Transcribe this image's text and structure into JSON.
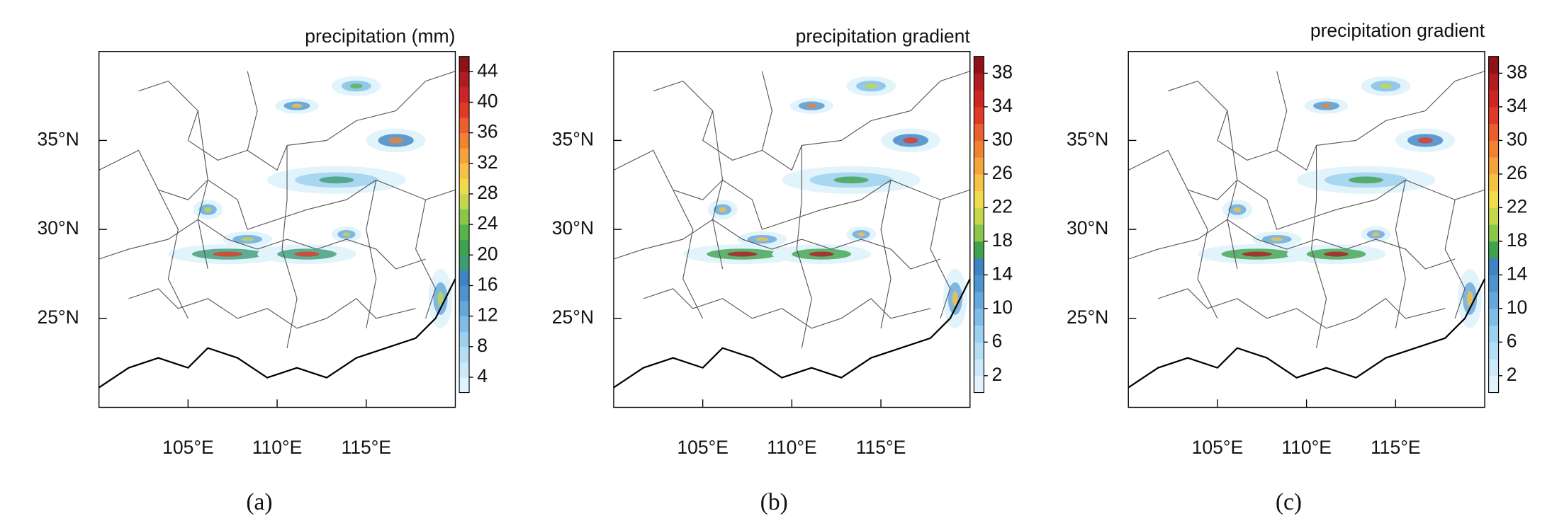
{
  "panels": [
    {
      "title": "precipitation (mm)",
      "caption": "(a)",
      "lonlim": [
        100,
        120
      ],
      "latlim": [
        20,
        40
      ],
      "lon_ticks": [
        {
          "value": 105,
          "label": "105°E"
        },
        {
          "value": 110,
          "label": "110°E"
        },
        {
          "value": 115,
          "label": "115°E"
        }
      ],
      "lat_ticks": [
        {
          "value": 35,
          "label": "35°N"
        },
        {
          "value": 30,
          "label": "30°N"
        },
        {
          "value": 25,
          "label": "25°N"
        }
      ],
      "colorbar_range": [
        2,
        46
      ],
      "colorbar_ticks": [
        4,
        8,
        12,
        16,
        20,
        24,
        28,
        32,
        36,
        40,
        44
      ],
      "colorbar_colors": [
        "#e1f3fb",
        "#cbe9f8",
        "#b4def4",
        "#9bd0ef",
        "#7fbde6",
        "#64a8db",
        "#4d94cf",
        "#3f83c2",
        "#3d9b78",
        "#3fa34d",
        "#56b54a",
        "#8ac64c",
        "#c3d64d",
        "#eedc4c",
        "#f6c245",
        "#f5a33c",
        "#f08234",
        "#ea5f2d",
        "#e03a27",
        "#cc2624",
        "#b01c20",
        "#8e1318"
      ]
    },
    {
      "title": "precipitation gradient",
      "caption": "(b)",
      "lonlim": [
        100,
        120
      ],
      "latlim": [
        20,
        40
      ],
      "lon_ticks": [
        {
          "value": 105,
          "label": "105°E"
        },
        {
          "value": 110,
          "label": "110°E"
        },
        {
          "value": 115,
          "label": "115°E"
        }
      ],
      "lat_ticks": [
        {
          "value": 35,
          "label": "35°N"
        },
        {
          "value": 30,
          "label": "30°N"
        },
        {
          "value": 25,
          "label": "25°N"
        }
      ],
      "colorbar_range": [
        0,
        40
      ],
      "colorbar_ticks": [
        2,
        6,
        10,
        14,
        18,
        22,
        26,
        30,
        34,
        38
      ],
      "colorbar_colors": [
        "#e1f3fb",
        "#cbe9f8",
        "#b4def4",
        "#9bd0ef",
        "#7fbde6",
        "#64a8db",
        "#4d94cf",
        "#3f83c2",
        "#3fa34d",
        "#8ac64c",
        "#c3d64d",
        "#eedc4c",
        "#f6c245",
        "#f5a33c",
        "#f08234",
        "#ea5f2d",
        "#e03a27",
        "#cc2624",
        "#b01c20",
        "#8e1318"
      ]
    },
    {
      "title": "precipitation gradient",
      "caption": "(c)",
      "lonlim": [
        100,
        120
      ],
      "latlim": [
        20,
        40
      ],
      "lon_ticks": [
        {
          "value": 105,
          "label": "105°E"
        },
        {
          "value": 110,
          "label": "110°E"
        },
        {
          "value": 115,
          "label": "115°E"
        }
      ],
      "lat_ticks": [
        {
          "value": 35,
          "label": "35°N"
        },
        {
          "value": 30,
          "label": "30°N"
        },
        {
          "value": 25,
          "label": "25°N"
        }
      ],
      "colorbar_range": [
        0,
        40
      ],
      "colorbar_ticks": [
        2,
        6,
        10,
        14,
        18,
        22,
        26,
        30,
        34,
        38
      ],
      "colorbar_colors": [
        "#e1f3fb",
        "#cbe9f8",
        "#b4def4",
        "#9bd0ef",
        "#7fbde6",
        "#64a8db",
        "#4d94cf",
        "#3f83c2",
        "#3fa34d",
        "#8ac64c",
        "#c3d64d",
        "#eedc4c",
        "#f6c245",
        "#f5a33c",
        "#f08234",
        "#ea5f2d",
        "#e03a27",
        "#cc2624",
        "#b01c20",
        "#8e1318"
      ]
    }
  ]
}
